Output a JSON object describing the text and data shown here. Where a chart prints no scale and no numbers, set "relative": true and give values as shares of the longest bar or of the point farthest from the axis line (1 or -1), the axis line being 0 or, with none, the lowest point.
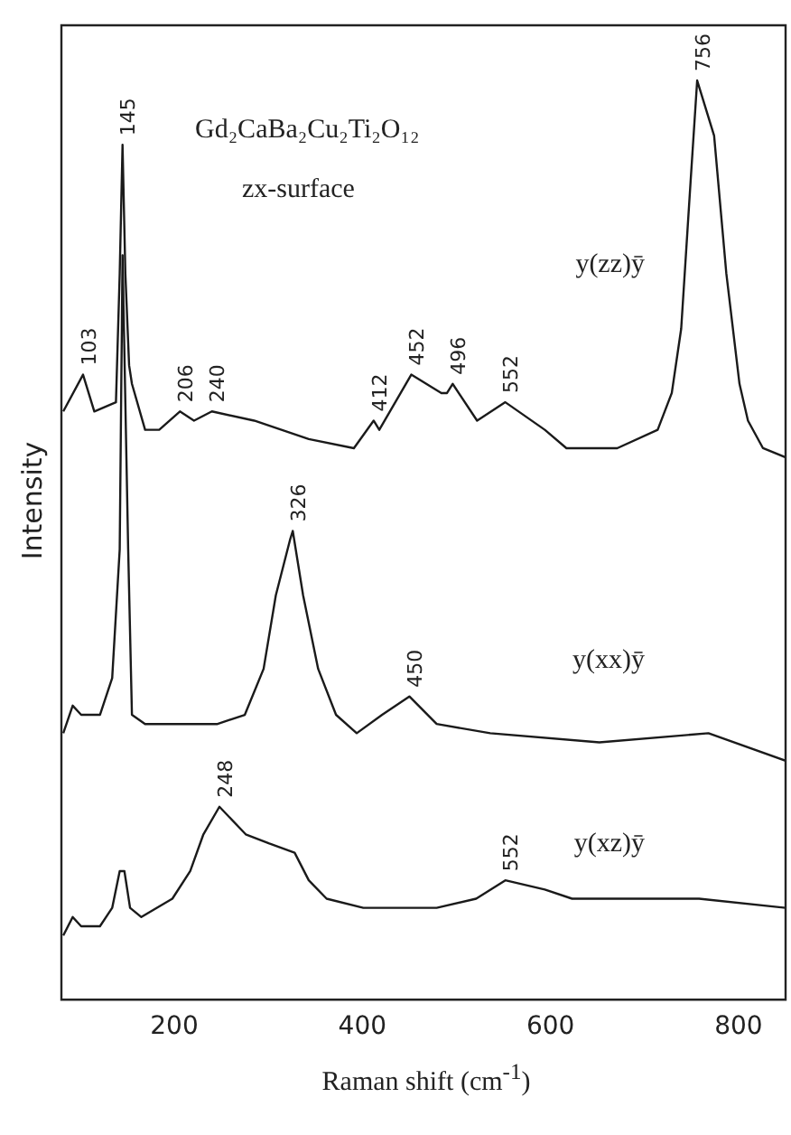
{
  "chart_data": {
    "type": "line",
    "title": "Gd₂CaBa₂Cu₂Ti₂O₁₂",
    "subtitle": "zx-surface",
    "xlabel": "Raman shift (cm$^{-1}$)",
    "ylabel": "Intensity",
    "relative": true,
    "xlim": [
      80,
      850
    ],
    "xticks": [
      200,
      400,
      600,
      800
    ],
    "grid": false,
    "legend": false,
    "marker": "none",
    "line_style": "solid",
    "series": [
      {
        "name": "y(zz)ȳ",
        "color": "#1a1a1a",
        "x": [
          82,
          103,
          115,
          138,
          142,
          145,
          148,
          152,
          155,
          169,
          184,
          206,
          221,
          240,
          285,
          343,
          391,
          412,
          418,
          452,
          484,
          490,
          496,
          522,
          552,
          594,
          617,
          671,
          714,
          729,
          739,
          749,
          756,
          774,
          787,
          801,
          810,
          826,
          850
        ],
        "values": [
          0.64,
          0.68,
          0.64,
          0.65,
          0.79,
          0.93,
          0.79,
          0.69,
          0.67,
          0.62,
          0.62,
          0.64,
          0.63,
          0.64,
          0.63,
          0.61,
          0.6,
          0.63,
          0.62,
          0.68,
          0.66,
          0.66,
          0.67,
          0.63,
          0.65,
          0.62,
          0.6,
          0.6,
          0.62,
          0.66,
          0.73,
          0.89,
          1.0,
          0.94,
          0.79,
          0.67,
          0.63,
          0.6,
          0.59
        ]
      },
      {
        "name": "y(xx)ȳ",
        "color": "#1a1a1a",
        "x": [
          82,
          92,
          101,
          121,
          134,
          142,
          145,
          151,
          155,
          169,
          208,
          246,
          275,
          295,
          308,
          323,
          326,
          337,
          353,
          372,
          394,
          421,
          450,
          479,
          536,
          652,
          768,
          850
        ],
        "values": [
          0.29,
          0.32,
          0.31,
          0.31,
          0.35,
          0.49,
          0.81,
          0.49,
          0.31,
          0.3,
          0.3,
          0.3,
          0.31,
          0.36,
          0.44,
          0.5,
          0.51,
          0.44,
          0.36,
          0.31,
          0.29,
          0.31,
          0.33,
          0.3,
          0.29,
          0.28,
          0.29,
          0.26
        ]
      },
      {
        "name": "y(xz)ȳ",
        "color": "#1a1a1a",
        "x": [
          82,
          92,
          101,
          121,
          134,
          142,
          147,
          153,
          165,
          198,
          217,
          231,
          248,
          276,
          301,
          328,
          343,
          362,
          401,
          479,
          521,
          552,
          594,
          623,
          758,
          850
        ],
        "values": [
          0.07,
          0.09,
          0.08,
          0.08,
          0.1,
          0.14,
          0.14,
          0.1,
          0.09,
          0.11,
          0.14,
          0.18,
          0.21,
          0.18,
          0.17,
          0.16,
          0.13,
          0.11,
          0.1,
          0.1,
          0.11,
          0.13,
          0.12,
          0.11,
          0.11,
          0.1
        ]
      }
    ],
    "annotations": [
      {
        "text": "103",
        "x": 103,
        "y": 0.68
      },
      {
        "text": "145",
        "x": 145,
        "y": 0.93
      },
      {
        "text": "206",
        "x": 206,
        "y": 0.64
      },
      {
        "text": "240",
        "x": 240,
        "y": 0.64
      },
      {
        "text": "412",
        "x": 412,
        "y": 0.63
      },
      {
        "text": "452",
        "x": 452,
        "y": 0.68
      },
      {
        "text": "496",
        "x": 496,
        "y": 0.67
      },
      {
        "text": "552",
        "x": 552,
        "y": 0.65
      },
      {
        "text": "756",
        "x": 756,
        "y": 1.0
      },
      {
        "text": "326",
        "x": 326,
        "y": 0.51
      },
      {
        "text": "450",
        "x": 450,
        "y": 0.33
      },
      {
        "text": "248",
        "x": 248,
        "y": 0.21
      },
      {
        "text": "552",
        "x": 552,
        "y": 0.13
      }
    ]
  }
}
